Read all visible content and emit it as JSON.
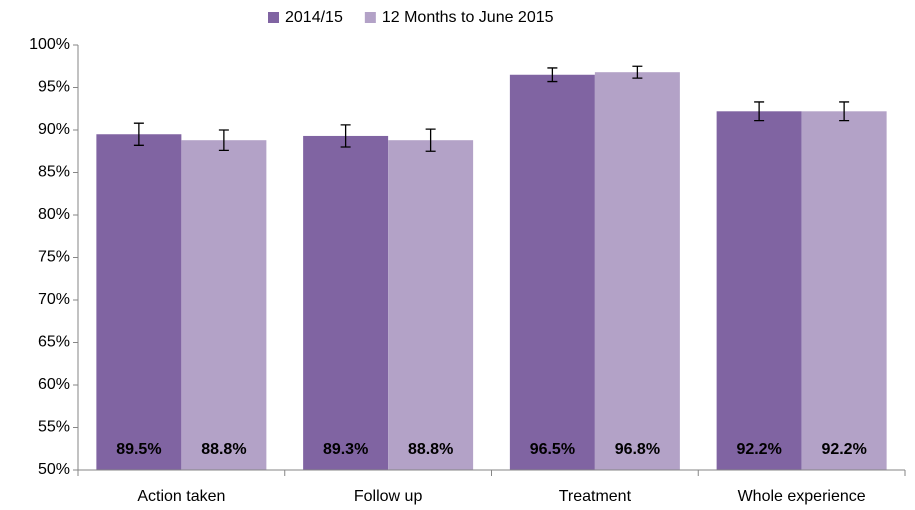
{
  "chart_data": {
    "type": "bar",
    "categories": [
      "Action taken",
      "Follow up",
      "Treatment",
      "Whole experience"
    ],
    "series": [
      {
        "name": "2014/15",
        "color": "#8064a2",
        "values": [
          89.5,
          89.3,
          96.5,
          92.2
        ],
        "value_labels": [
          "89.5%",
          "89.3%",
          "96.5%",
          "92.2%"
        ],
        "errors": [
          1.3,
          1.3,
          0.8,
          1.1
        ]
      },
      {
        "name": "12 Months to June 2015",
        "color": "#b3a2c7",
        "values": [
          88.8,
          88.8,
          96.8,
          92.2
        ],
        "value_labels": [
          "88.8%",
          "88.8%",
          "96.8%",
          "92.2%"
        ],
        "errors": [
          1.2,
          1.3,
          0.7,
          1.1
        ]
      }
    ],
    "ylim": [
      50,
      100
    ],
    "yticks": [
      {
        "value": 50,
        "label": "50%"
      },
      {
        "value": 55,
        "label": "55%"
      },
      {
        "value": 60,
        "label": "60%"
      },
      {
        "value": 65,
        "label": "65%"
      },
      {
        "value": 70,
        "label": "70%"
      },
      {
        "value": 75,
        "label": "75%"
      },
      {
        "value": 80,
        "label": "80%"
      },
      {
        "value": 85,
        "label": "85%"
      },
      {
        "value": 90,
        "label": "90%"
      },
      {
        "value": 95,
        "label": "95%"
      },
      {
        "value": 100,
        "label": "100%"
      }
    ],
    "grid": false,
    "legend": "top"
  }
}
